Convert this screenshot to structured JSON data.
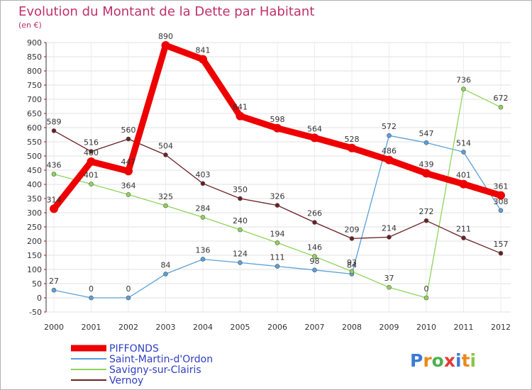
{
  "chart_data": {
    "type": "line",
    "title": "Evolution du Montant de la Dette par Habitant",
    "subtitle": "(en €)",
    "x": [
      "2000",
      "2001",
      "2002",
      "2003",
      "2004",
      "2005",
      "2006",
      "2007",
      "2008",
      "2009",
      "2010",
      "2011",
      "2012"
    ],
    "ylim": [
      -50,
      900
    ],
    "yticks": [
      -50,
      0,
      50,
      100,
      150,
      200,
      250,
      300,
      350,
      400,
      450,
      500,
      550,
      600,
      650,
      700,
      750,
      800,
      850,
      900
    ],
    "grid": true,
    "legend_position": "bottom-left",
    "series": [
      {
        "name": "Saint-Martin-d'Ordon",
        "color": "#5aa0d8",
        "values": [
          27,
          0,
          0,
          84,
          136,
          124,
          111,
          98,
          84,
          572,
          547,
          514,
          308
        ]
      },
      {
        "name": "Savigny-sur-Clairis",
        "color": "#8ed45a",
        "values": [
          436,
          401,
          364,
          325,
          284,
          240,
          194,
          146,
          93,
          37,
          0,
          736,
          672
        ]
      },
      {
        "name": "Vernoy",
        "color": "#6b1f24",
        "values": [
          589,
          516,
          560,
          504,
          403,
          350,
          326,
          266,
          209,
          214,
          272,
          211,
          157
        ]
      },
      {
        "name": "PIFFONDS",
        "color": "#ee0000",
        "values": [
          314,
          480,
          447,
          890,
          841,
          641,
          598,
          564,
          528,
          486,
          439,
          401,
          361
        ]
      }
    ],
    "legend_order": [
      3,
      0,
      1,
      2
    ]
  },
  "logo": {
    "parts": [
      "P",
      "r",
      "o",
      "x",
      "i",
      "t",
      "i"
    ]
  }
}
